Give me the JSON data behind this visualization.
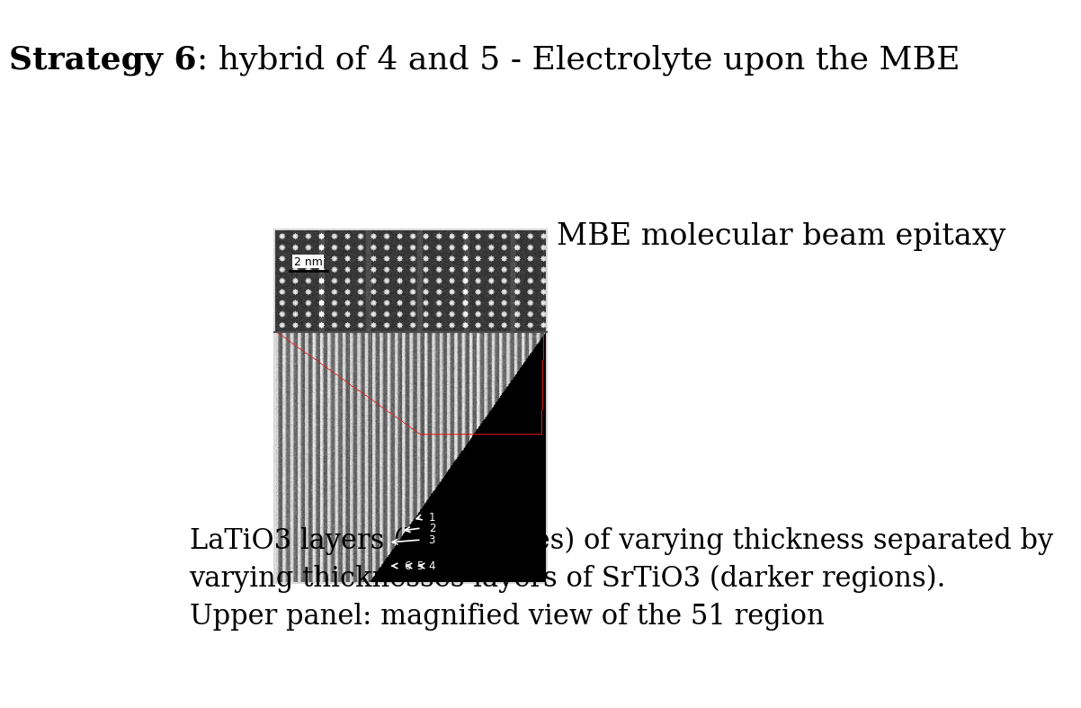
{
  "title_bold": "Strategy 6",
  "title_rest": ": hybrid of 4 and 5 - Electrolyte upon the MBE",
  "side_text": "MBE molecular beam epitaxy",
  "caption_line1": "LaTiO3 layers (bright lines) of varying thickness separated by",
  "caption_line2": "varying thicknesses layers of SrTiO3 (darker regions).",
  "caption_line3": "Upper panel: magnified view of the 51 region",
  "background_color": "#ffffff",
  "title_fontsize": 26,
  "body_fontsize": 22,
  "side_text_fontsize": 24
}
